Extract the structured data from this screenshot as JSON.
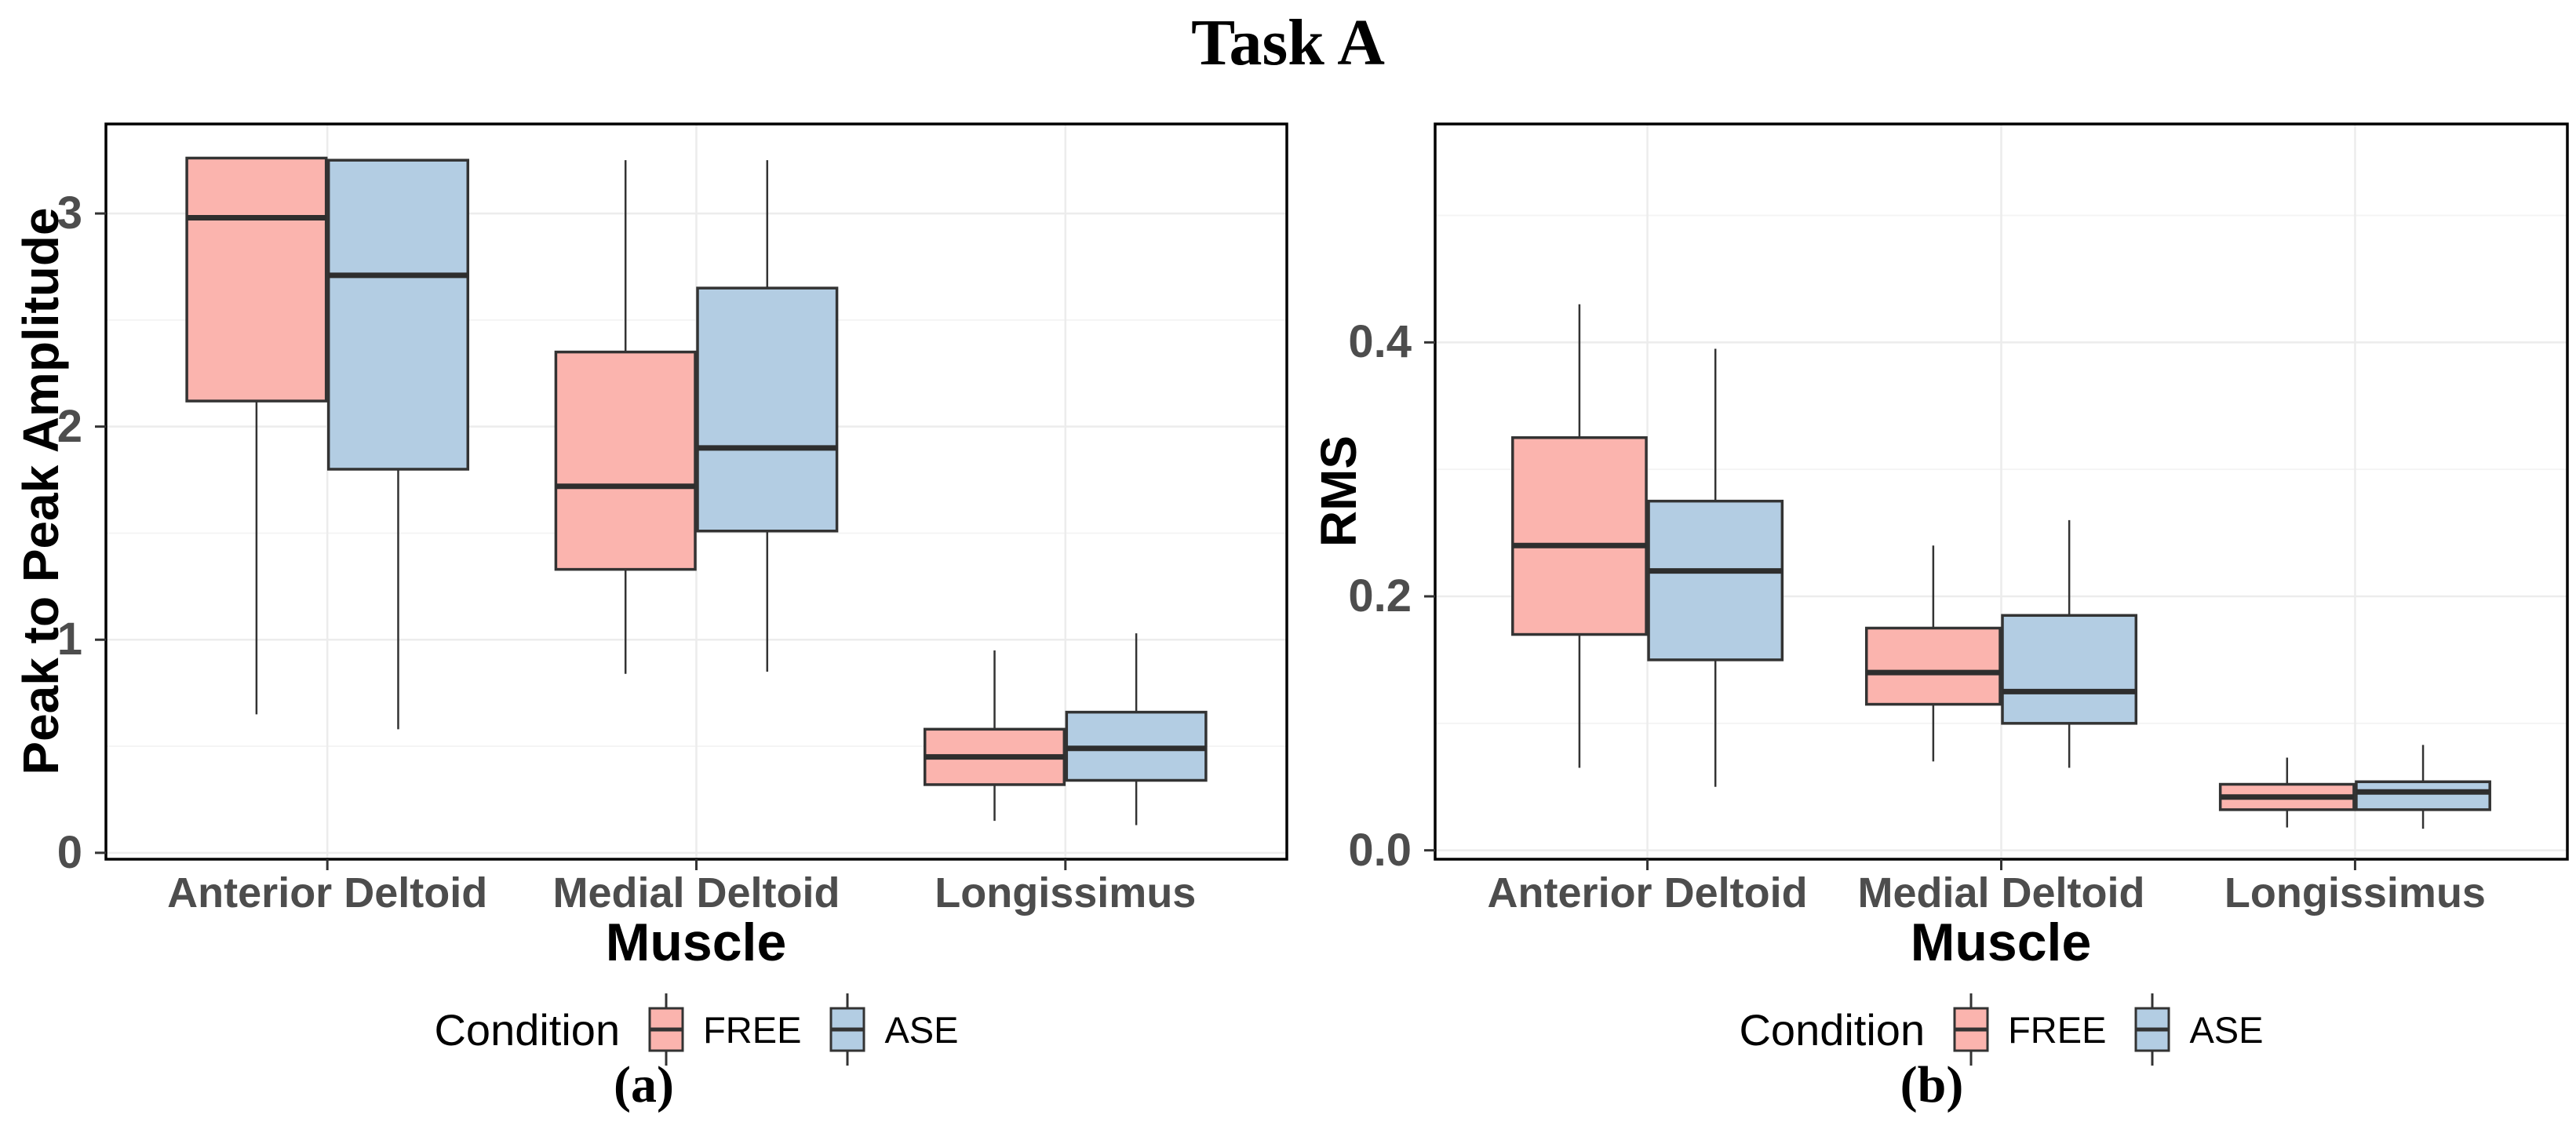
{
  "title": "Task A",
  "legend": {
    "title": "Condition",
    "items": [
      {
        "label": "FREE",
        "color": "#FBB4AE"
      },
      {
        "label": "ASE",
        "color": "#B3CDE3"
      }
    ]
  },
  "captions": {
    "a": "(a)",
    "b": "(b)"
  },
  "colors": {
    "free_fill": "#FBB4AE",
    "ase_fill": "#B3CDE3",
    "box_stroke": "#333333",
    "median_stroke": "#2e2e2e",
    "grid_major": "#ececec",
    "grid_minor": "#f4f4f4",
    "tick_label": "#4d4d4d",
    "panel_border": "#000000",
    "background": "#ffffff"
  },
  "chart_data": [
    {
      "type": "boxplot",
      "panel": "a",
      "caption": "(a)",
      "ylabel": "Peak to Peak Amplitude",
      "xlabel": "Muscle",
      "categories": [
        "Anterior Deltoid",
        "Medial Deltoid",
        "Longissimus"
      ],
      "ylim": [
        -0.03,
        3.42
      ],
      "grid": true,
      "legend_position": "bottom",
      "y_major_ticks": [
        {
          "v": 0,
          "label": "0"
        },
        {
          "v": 1,
          "label": "1"
        },
        {
          "v": 2,
          "label": "2"
        },
        {
          "v": 3,
          "label": "3"
        }
      ],
      "y_minor_ticks": [
        0.5,
        1.5,
        2.5
      ],
      "series": [
        {
          "name": "FREE",
          "boxes": [
            {
              "category": "Anterior Deltoid",
              "min": 0.65,
              "q1": 2.12,
              "median": 2.98,
              "q3": 3.26,
              "max": 3.26
            },
            {
              "category": "Medial Deltoid",
              "min": 0.84,
              "q1": 1.33,
              "median": 1.72,
              "q3": 2.35,
              "max": 3.25
            },
            {
              "category": "Longissimus",
              "min": 0.15,
              "q1": 0.32,
              "median": 0.45,
              "q3": 0.58,
              "max": 0.95
            }
          ]
        },
        {
          "name": "ASE",
          "boxes": [
            {
              "category": "Anterior Deltoid",
              "min": 0.58,
              "q1": 1.8,
              "median": 2.71,
              "q3": 3.25,
              "max": 3.25
            },
            {
              "category": "Medial Deltoid",
              "min": 0.85,
              "q1": 1.51,
              "median": 1.9,
              "q3": 2.65,
              "max": 3.25
            },
            {
              "category": "Longissimus",
              "min": 0.13,
              "q1": 0.34,
              "median": 0.49,
              "q3": 0.66,
              "max": 1.03
            }
          ]
        }
      ]
    },
    {
      "type": "boxplot",
      "panel": "b",
      "caption": "(b)",
      "ylabel": "RMS",
      "xlabel": "Muscle",
      "categories": [
        "Anterior Deltoid",
        "Medial Deltoid",
        "Longissimus"
      ],
      "ylim": [
        -0.007,
        0.572
      ],
      "grid": true,
      "legend_position": "bottom",
      "y_major_ticks": [
        {
          "v": 0,
          "label": "0.0"
        },
        {
          "v": 0.2,
          "label": "0.2"
        },
        {
          "v": 0.4,
          "label": "0.4"
        }
      ],
      "y_minor_ticks": [
        0.1,
        0.3,
        0.5
      ],
      "series": [
        {
          "name": "FREE",
          "boxes": [
            {
              "category": "Anterior Deltoid",
              "min": 0.065,
              "q1": 0.17,
              "median": 0.24,
              "q3": 0.325,
              "max": 0.43
            },
            {
              "category": "Medial Deltoid",
              "min": 0.07,
              "q1": 0.115,
              "median": 0.14,
              "q3": 0.175,
              "max": 0.24
            },
            {
              "category": "Longissimus",
              "min": 0.018,
              "q1": 0.032,
              "median": 0.042,
              "q3": 0.052,
              "max": 0.073
            }
          ]
        },
        {
          "name": "ASE",
          "boxes": [
            {
              "category": "Anterior Deltoid",
              "min": 0.05,
              "q1": 0.15,
              "median": 0.22,
              "q3": 0.275,
              "max": 0.395
            },
            {
              "category": "Medial Deltoid",
              "min": 0.065,
              "q1": 0.1,
              "median": 0.125,
              "q3": 0.185,
              "max": 0.26
            },
            {
              "category": "Longissimus",
              "min": 0.017,
              "q1": 0.032,
              "median": 0.046,
              "q3": 0.054,
              "max": 0.083
            }
          ]
        }
      ]
    }
  ]
}
